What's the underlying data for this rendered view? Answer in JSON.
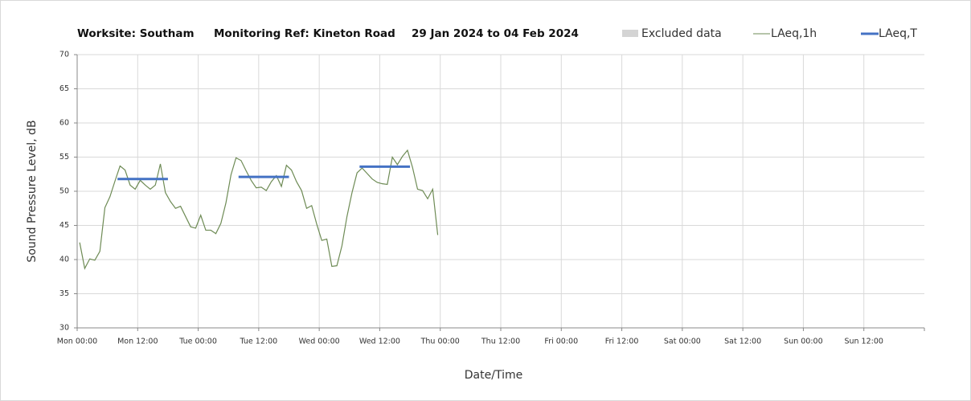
{
  "chart_data": {
    "type": "line",
    "title": [
      "Worksite: Southam",
      "Monitoring Ref: Kineton Road",
      "29 Jan 2024 to 04 Feb 2024"
    ],
    "x_label": "Date/Time",
    "y_label": "Sound Pressure Level, dB",
    "xlim": [
      0,
      168
    ],
    "xticks": [
      {
        "value": 0,
        "label": "Mon 00:00"
      },
      {
        "value": 12,
        "label": "Mon 12:00"
      },
      {
        "value": 24,
        "label": "Tue 00:00"
      },
      {
        "value": 36,
        "label": "Tue 12:00"
      },
      {
        "value": 48,
        "label": "Wed 00:00"
      },
      {
        "value": 60,
        "label": "Wed 12:00"
      },
      {
        "value": 72,
        "label": "Thu 00:00"
      },
      {
        "value": 84,
        "label": "Thu 12:00"
      },
      {
        "value": 96,
        "label": "Fri 00:00"
      },
      {
        "value": 108,
        "label": "Fri 12:00"
      },
      {
        "value": 120,
        "label": "Sat 00:00"
      },
      {
        "value": 132,
        "label": "Sat 12:00"
      },
      {
        "value": 144,
        "label": "Sun 00:00"
      },
      {
        "value": 156,
        "label": "Sun 12:00"
      }
    ],
    "ylim": [
      30,
      70
    ],
    "yticks": [
      30,
      35,
      40,
      45,
      50,
      55,
      60,
      65,
      70
    ],
    "grid": true,
    "excluded": {
      "name": "Excluded data",
      "color": "#d4d4d4"
    },
    "x": [
      0.5,
      1.5,
      2.5,
      3.5,
      4.5,
      5.5,
      6.5,
      7.5,
      8.5,
      9.5,
      10.5,
      11.5,
      12.5,
      13.5,
      14.5,
      15.5,
      16.5,
      17.5,
      18.5,
      19.5,
      20.5,
      21.5,
      22.5,
      23.5,
      24.5,
      25.5,
      26.5,
      27.5,
      28.5,
      29.5,
      30.5,
      31.5,
      32.5,
      33.5,
      34.5,
      35.5,
      36.5,
      37.5,
      38.5,
      39.5,
      40.5,
      41.5,
      42.5,
      43.5,
      44.5,
      45.5,
      46.5,
      47.5,
      48.5,
      49.5,
      50.5,
      51.5,
      52.5,
      53.5,
      54.5,
      55.5,
      56.5,
      57.5,
      58.5,
      59.5,
      60.5,
      61.5,
      62.5,
      63.5,
      64.5,
      65.5,
      66.5,
      67.5,
      68.5,
      69.5,
      70.5,
      71.5
    ],
    "series": [
      {
        "name": "LAeq,1h",
        "color": "#6e8b55",
        "values": [
          42.5,
          38.7,
          40.1,
          39.9,
          41.2,
          47.6,
          49.2,
          51.5,
          53.7,
          53.1,
          50.9,
          50.3,
          51.6,
          50.9,
          50.3,
          50.9,
          54.0,
          49.8,
          48.5,
          47.5,
          47.8,
          46.3,
          44.8,
          44.6,
          46.5,
          44.3,
          44.3,
          43.8,
          45.3,
          48.3,
          52.4,
          54.9,
          54.5,
          53.0,
          51.6,
          50.5,
          50.6,
          50.1,
          51.4,
          52.3,
          50.7,
          53.8,
          53.1,
          51.4,
          50.1,
          47.5,
          47.9,
          45.2,
          42.8,
          43.0,
          39.0,
          39.1,
          42.0,
          46.3,
          49.8,
          52.7,
          53.4,
          52.6,
          51.8,
          51.3,
          51.1,
          51.0,
          55.0,
          53.9,
          55.1,
          56.0,
          53.5,
          50.3,
          50.1,
          48.9,
          50.3,
          43.6
        ]
      }
    ],
    "periods": {
      "name": "LAeq,T",
      "color": "#4472c4",
      "items": [
        {
          "start": 8,
          "end": 18,
          "value": 51.8
        },
        {
          "start": 32,
          "end": 42,
          "value": 52.1
        },
        {
          "start": 56,
          "end": 66,
          "value": 53.6
        }
      ]
    }
  }
}
